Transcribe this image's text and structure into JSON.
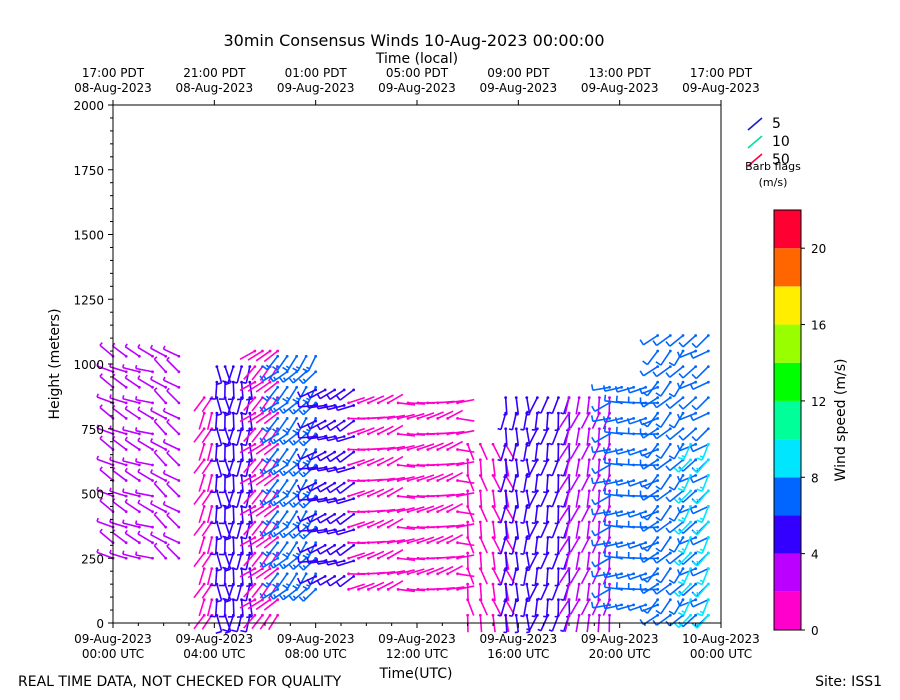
{
  "chart_data": {
    "type": "wind-barb",
    "title": "30min Consensus Winds 10-Aug-2023 00:00:00",
    "top_axis_label": "Time (local)",
    "xlabel": "Time(UTC)",
    "ylabel": "Height (meters)",
    "x_unit": "hours since 09-Aug-2023 00:00 UTC",
    "xlim": [
      0,
      24
    ],
    "ylim": [
      0,
      2000
    ],
    "y_ticks": [
      0,
      250,
      500,
      750,
      1000,
      1250,
      1500,
      1750,
      2000
    ],
    "x_ticks": [
      {
        "hour": 0,
        "date": "09-Aug-2023",
        "time": "00:00 UTC"
      },
      {
        "hour": 4,
        "date": "09-Aug-2023",
        "time": "04:00 UTC"
      },
      {
        "hour": 8,
        "date": "09-Aug-2023",
        "time": "08:00 UTC"
      },
      {
        "hour": 12,
        "date": "09-Aug-2023",
        "time": "12:00 UTC"
      },
      {
        "hour": 16,
        "date": "09-Aug-2023",
        "time": "16:00 UTC"
      },
      {
        "hour": 20,
        "date": "09-Aug-2023",
        "time": "20:00 UTC"
      },
      {
        "hour": 24,
        "date": "10-Aug-2023",
        "time": "00:00 UTC"
      }
    ],
    "top_ticks": [
      {
        "hour": 0,
        "time": "17:00 PDT",
        "date": "08-Aug-2023"
      },
      {
        "hour": 4,
        "time": "21:00 PDT",
        "date": "08-Aug-2023"
      },
      {
        "hour": 8,
        "time": "01:00 PDT",
        "date": "09-Aug-2023"
      },
      {
        "hour": 12,
        "time": "05:00 PDT",
        "date": "09-Aug-2023"
      },
      {
        "hour": 16,
        "time": "09:00 PDT",
        "date": "09-Aug-2023"
      },
      {
        "hour": 20,
        "time": "13:00 PDT",
        "date": "09-Aug-2023"
      },
      {
        "hour": 24,
        "time": "17:00 PDT",
        "date": "09-Aug-2023"
      }
    ],
    "barb_legend": {
      "entries": [
        {
          "label": "5",
          "color": "#1a1acc"
        },
        {
          "label": "10",
          "color": "#00e0a0"
        },
        {
          "label": "50",
          "color": "#ff0040"
        }
      ],
      "title": "Barb flags",
      "unit": "(m/s)"
    },
    "colorbar": {
      "label": "Wind speed (m/s)",
      "range": [
        0,
        22
      ],
      "ticks": [
        0,
        4,
        8,
        12,
        16,
        20
      ],
      "bins": [
        {
          "from": 0,
          "to": 2,
          "color": "#ff00cc"
        },
        {
          "from": 2,
          "to": 4,
          "color": "#bb00ff"
        },
        {
          "from": 4,
          "to": 6,
          "color": "#3300ff"
        },
        {
          "from": 6,
          "to": 8,
          "color": "#0066ff"
        },
        {
          "from": 8,
          "to": 10,
          "color": "#00e6ff"
        },
        {
          "from": 10,
          "to": 12,
          "color": "#00ff99"
        },
        {
          "from": 12,
          "to": 14,
          "color": "#00ff00"
        },
        {
          "from": 14,
          "to": 16,
          "color": "#99ff00"
        },
        {
          "from": 16,
          "to": 18,
          "color": "#ffee00"
        },
        {
          "from": 18,
          "to": 20,
          "color": "#ff6600"
        },
        {
          "from": 20,
          "to": 22,
          "color": "#ff0033"
        }
      ]
    },
    "segments": [
      {
        "t0": 0.0,
        "t1": 2.6,
        "h0": 220,
        "h1": 1050,
        "speed": 3.0,
        "dir": 300,
        "count": 6
      },
      {
        "t0": 3.6,
        "t1": 3.9,
        "h0": 0,
        "h1": 900,
        "speed": 1.5,
        "dir": 200,
        "count": 2
      },
      {
        "t0": 4.1,
        "t1": 5.4,
        "h0": 0,
        "h1": 1000,
        "speed": 5.5,
        "dir": 180,
        "count": 5
      },
      {
        "t0": 5.6,
        "t1": 6.5,
        "h0": 0,
        "h1": 1050,
        "speed": 1.2,
        "dir": 230,
        "count": 4
      },
      {
        "t0": 6.5,
        "t1": 8.0,
        "h0": 100,
        "h1": 1080,
        "speed": 7.5,
        "dir": 220,
        "count": 5
      },
      {
        "t0": 8.0,
        "t1": 9.5,
        "h0": 150,
        "h1": 950,
        "speed": 5.0,
        "dir": 250,
        "count": 5
      },
      {
        "t0": 9.3,
        "t1": 13.6,
        "h0": 100,
        "h1": 880,
        "speed": 1.8,
        "dir": 80,
        "count": 12
      },
      {
        "t0": 14.0,
        "t1": 15.5,
        "h0": 0,
        "h1": 720,
        "speed": 1.5,
        "dir": 160,
        "count": 4
      },
      {
        "t0": 15.5,
        "t1": 18.0,
        "h0": 0,
        "h1": 880,
        "speed": 4.8,
        "dir": 190,
        "count": 7
      },
      {
        "t0": 18.0,
        "t1": 19.6,
        "h0": 0,
        "h1": 880,
        "speed": 2.0,
        "dir": 200,
        "count": 5
      },
      {
        "t0": 19.6,
        "t1": 21.5,
        "h0": 40,
        "h1": 960,
        "speed": 6.5,
        "dir": 260,
        "count": 5
      },
      {
        "t0": 21.5,
        "t1": 23.5,
        "h0": 0,
        "h1": 1150,
        "speed": 7.0,
        "dir": 230,
        "count": 5
      },
      {
        "t0": 22.8,
        "t1": 23.5,
        "h0": 0,
        "h1": 700,
        "speed": 8.5,
        "dir": 210,
        "count": 2
      }
    ]
  },
  "footer": {
    "disclaimer": "REAL TIME DATA, NOT CHECKED FOR QUALITY",
    "site": "Site: ISS1"
  }
}
